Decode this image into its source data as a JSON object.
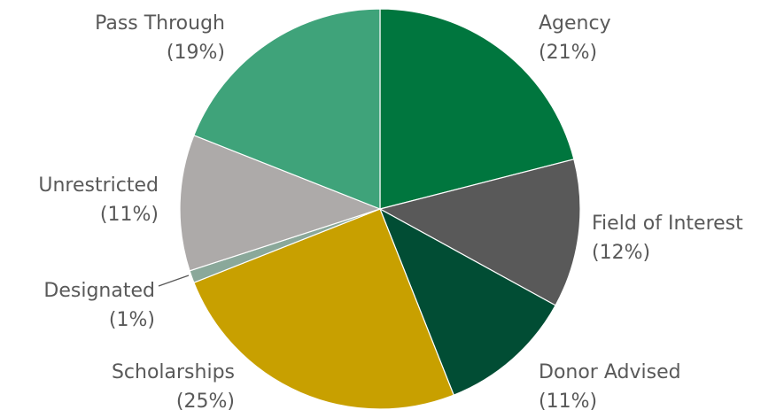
{
  "chart_data": {
    "type": "pie",
    "title": "",
    "slices": [
      {
        "name": "Agency",
        "value": 21,
        "pct_label": "(21%)",
        "color": "#00763e"
      },
      {
        "name": "Field of Interest",
        "value": 12,
        "pct_label": "(12%)",
        "color": "#595959"
      },
      {
        "name": "Donor Advised",
        "value": 11,
        "pct_label": "(11%)",
        "color": "#014d34"
      },
      {
        "name": "Scholarships",
        "value": 25,
        "pct_label": "(25%)",
        "color": "#c8a000"
      },
      {
        "name": "Designated",
        "value": 1,
        "pct_label": "(1%)",
        "color": "#8aa89a"
      },
      {
        "name": "Unrestricted",
        "value": 11,
        "pct_label": "(11%)",
        "color": "#adaaa9"
      },
      {
        "name": "Pass Through",
        "value": 19,
        "pct_label": "(19%)",
        "color": "#3fa37a"
      }
    ],
    "start_angle": "12 o'clock",
    "direction": "clockwise",
    "legend": "none"
  }
}
